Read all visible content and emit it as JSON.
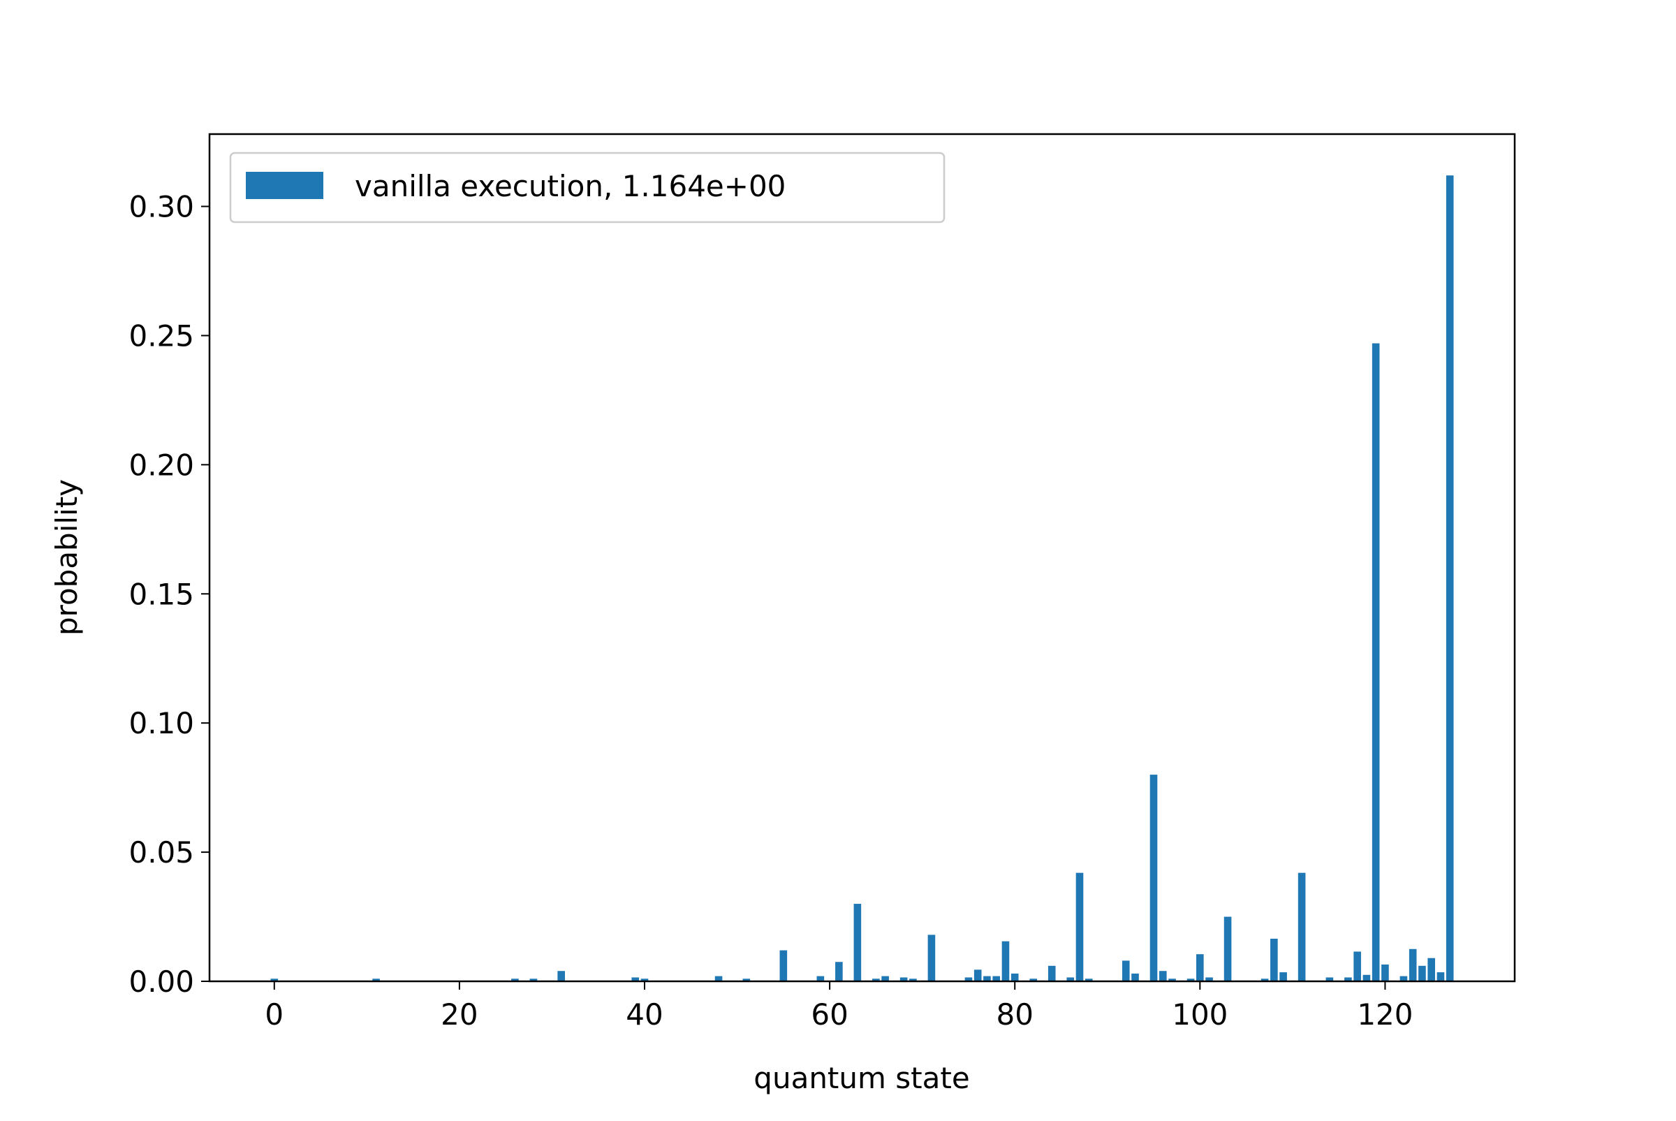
{
  "chart_data": {
    "type": "bar",
    "title": "",
    "xlabel": "quantum state",
    "ylabel": "probability",
    "xlim": [
      -7,
      134
    ],
    "ylim": [
      0,
      0.328
    ],
    "xticks": [
      0,
      20,
      40,
      60,
      80,
      100,
      120
    ],
    "xtick_labels": [
      "0",
      "20",
      "40",
      "60",
      "80",
      "100",
      "120"
    ],
    "yticks": [
      0.0,
      0.05,
      0.1,
      0.15,
      0.2,
      0.25,
      0.3
    ],
    "ytick_labels": [
      "0.00",
      "0.05",
      "0.10",
      "0.15",
      "0.20",
      "0.25",
      "0.30"
    ],
    "grid": false,
    "legend": {
      "position": "upper-left",
      "entries": [
        "vanilla execution, 1.164e+00"
      ]
    },
    "series": [
      {
        "name": "vanilla execution, 1.164e+00",
        "color": "#1f77b4",
        "x": [
          0,
          11,
          26,
          28,
          31,
          39,
          40,
          48,
          51,
          55,
          59,
          61,
          63,
          65,
          66,
          68,
          69,
          71,
          75,
          76,
          77,
          78,
          79,
          80,
          82,
          84,
          86,
          87,
          88,
          92,
          93,
          95,
          96,
          97,
          99,
          100,
          101,
          103,
          107,
          108,
          109,
          111,
          114,
          116,
          117,
          118,
          119,
          120,
          122,
          123,
          124,
          125,
          126,
          127
        ],
        "values": [
          0.001,
          0.001,
          0.001,
          0.001,
          0.004,
          0.0015,
          0.001,
          0.002,
          0.001,
          0.012,
          0.002,
          0.0075,
          0.03,
          0.001,
          0.002,
          0.0015,
          0.001,
          0.018,
          0.0015,
          0.0045,
          0.002,
          0.002,
          0.0155,
          0.003,
          0.001,
          0.006,
          0.0015,
          0.042,
          0.001,
          0.008,
          0.003,
          0.08,
          0.004,
          0.001,
          0.001,
          0.0105,
          0.0015,
          0.025,
          0.001,
          0.0165,
          0.0035,
          0.042,
          0.0015,
          0.0015,
          0.0115,
          0.0025,
          0.247,
          0.0065,
          0.002,
          0.0125,
          0.006,
          0.009,
          0.0035,
          0.312
        ]
      }
    ]
  }
}
